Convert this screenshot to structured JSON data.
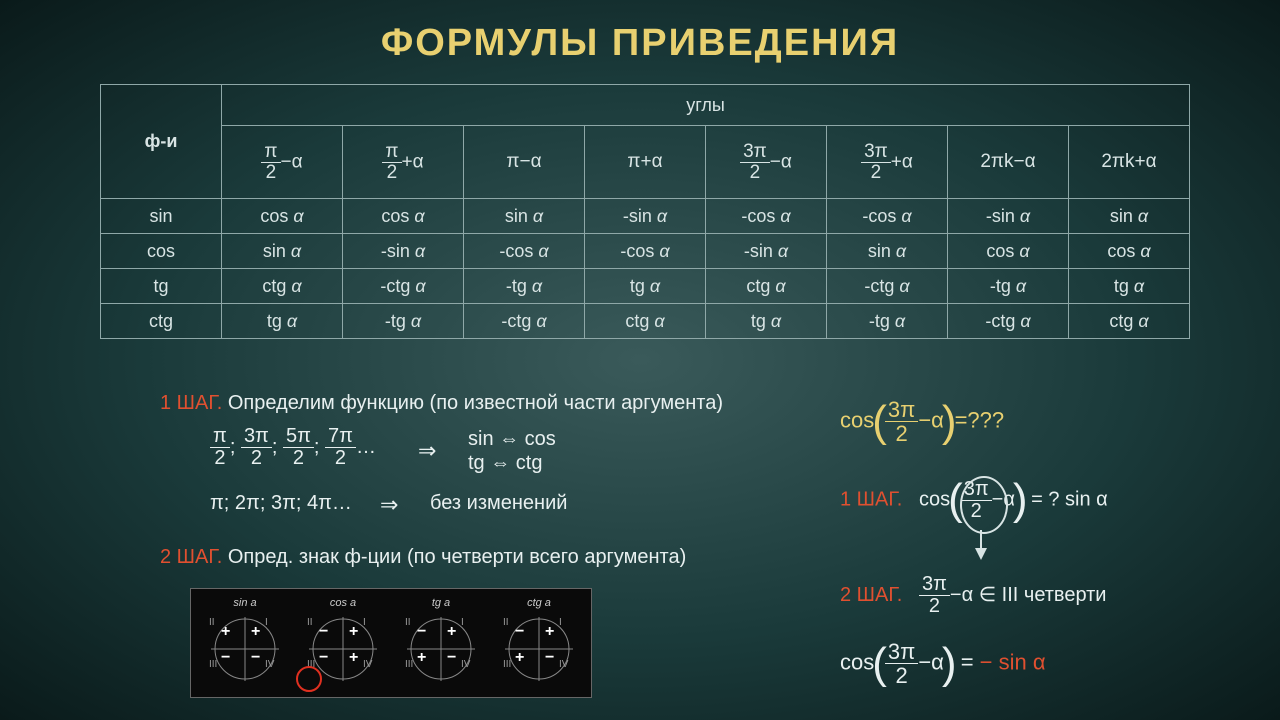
{
  "title": "ФОРМУЛЫ ПРИВЕДЕНИЯ",
  "titleColor": "#e8d070",
  "cornerLabel": "ф-и",
  "anglesLabel": "углы",
  "angleHeaders": [
    {
      "type": "frac",
      "num": "π",
      "den": "2",
      "tail": "−α"
    },
    {
      "type": "frac",
      "num": "π",
      "den": "2",
      "tail": "+α"
    },
    {
      "type": "plain",
      "txt": "π−α"
    },
    {
      "type": "plain",
      "txt": "π+α"
    },
    {
      "type": "frac",
      "num": "3π",
      "den": "2",
      "tail": "−α"
    },
    {
      "type": "frac",
      "num": "3π",
      "den": "2",
      "tail": "+α"
    },
    {
      "type": "plain",
      "txt": "2πk−α"
    },
    {
      "type": "plain",
      "txt": "2πk+α"
    }
  ],
  "rows": [
    {
      "fn": "sin",
      "vals": [
        "cos α",
        "cos α",
        "sin α",
        "-sin α",
        "-cos α",
        "-cos α",
        "-sin α",
        "sin α"
      ]
    },
    {
      "fn": "cos",
      "vals": [
        "sin α",
        "-sin α",
        "-cos α",
        "-cos α",
        "-sin α",
        "sin α",
        "cos α",
        "cos α"
      ]
    },
    {
      "fn": "tg",
      "vals": [
        "ctg α",
        "-ctg α",
        "-tg α",
        "tg α",
        "ctg α",
        "-ctg α",
        "-tg α",
        "tg α"
      ]
    },
    {
      "fn": "ctg",
      "vals": [
        "tg α",
        "-tg α",
        "-ctg α",
        "ctg α",
        "tg α",
        "-tg α",
        "-ctg α",
        "ctg α"
      ]
    }
  ],
  "step1Label": "1 ШАГ.",
  "step1Text": "Определим функцию  (по известной части аргумента)",
  "oddFracs": [
    "π",
    "3π",
    "5π",
    "7π"
  ],
  "implies": "⇒",
  "swap1": "sin ⇔ cos",
  "swap2": "tg  ⇔ ctg",
  "evenList": "π; 2π; 3π; 4π…",
  "noChange": "без изменений",
  "step2Label": "2 ШАГ.",
  "step2Text": "Опред. знак ф-ции (по четверти всего аргумента)",
  "quadrants": [
    {
      "title": "sin a",
      "signs": [
        "+",
        "+",
        "−",
        "−"
      ]
    },
    {
      "title": "cos a",
      "signs": [
        "−",
        "+",
        "−",
        "+"
      ]
    },
    {
      "title": "tg a",
      "signs": [
        "−",
        "+",
        "+",
        "−"
      ]
    },
    {
      "title": "ctg a",
      "signs": [
        "−",
        "+",
        "+",
        "−"
      ]
    }
  ],
  "romans": [
    "II",
    "I",
    "III",
    "IV"
  ],
  "exQuestion": "=???",
  "exStep1": "1 ШАГ.",
  "exStep1Tail": " =  ? sin α",
  "exStep2": "2 ШАГ.",
  "exStep2Body": "−α ∈ III  четверти",
  "exFinal": "= − sin α",
  "exFinalColor": "#e05030",
  "cosLabel": "cos",
  "threePi": "3π",
  "two": "2",
  "minusA": "−α"
}
